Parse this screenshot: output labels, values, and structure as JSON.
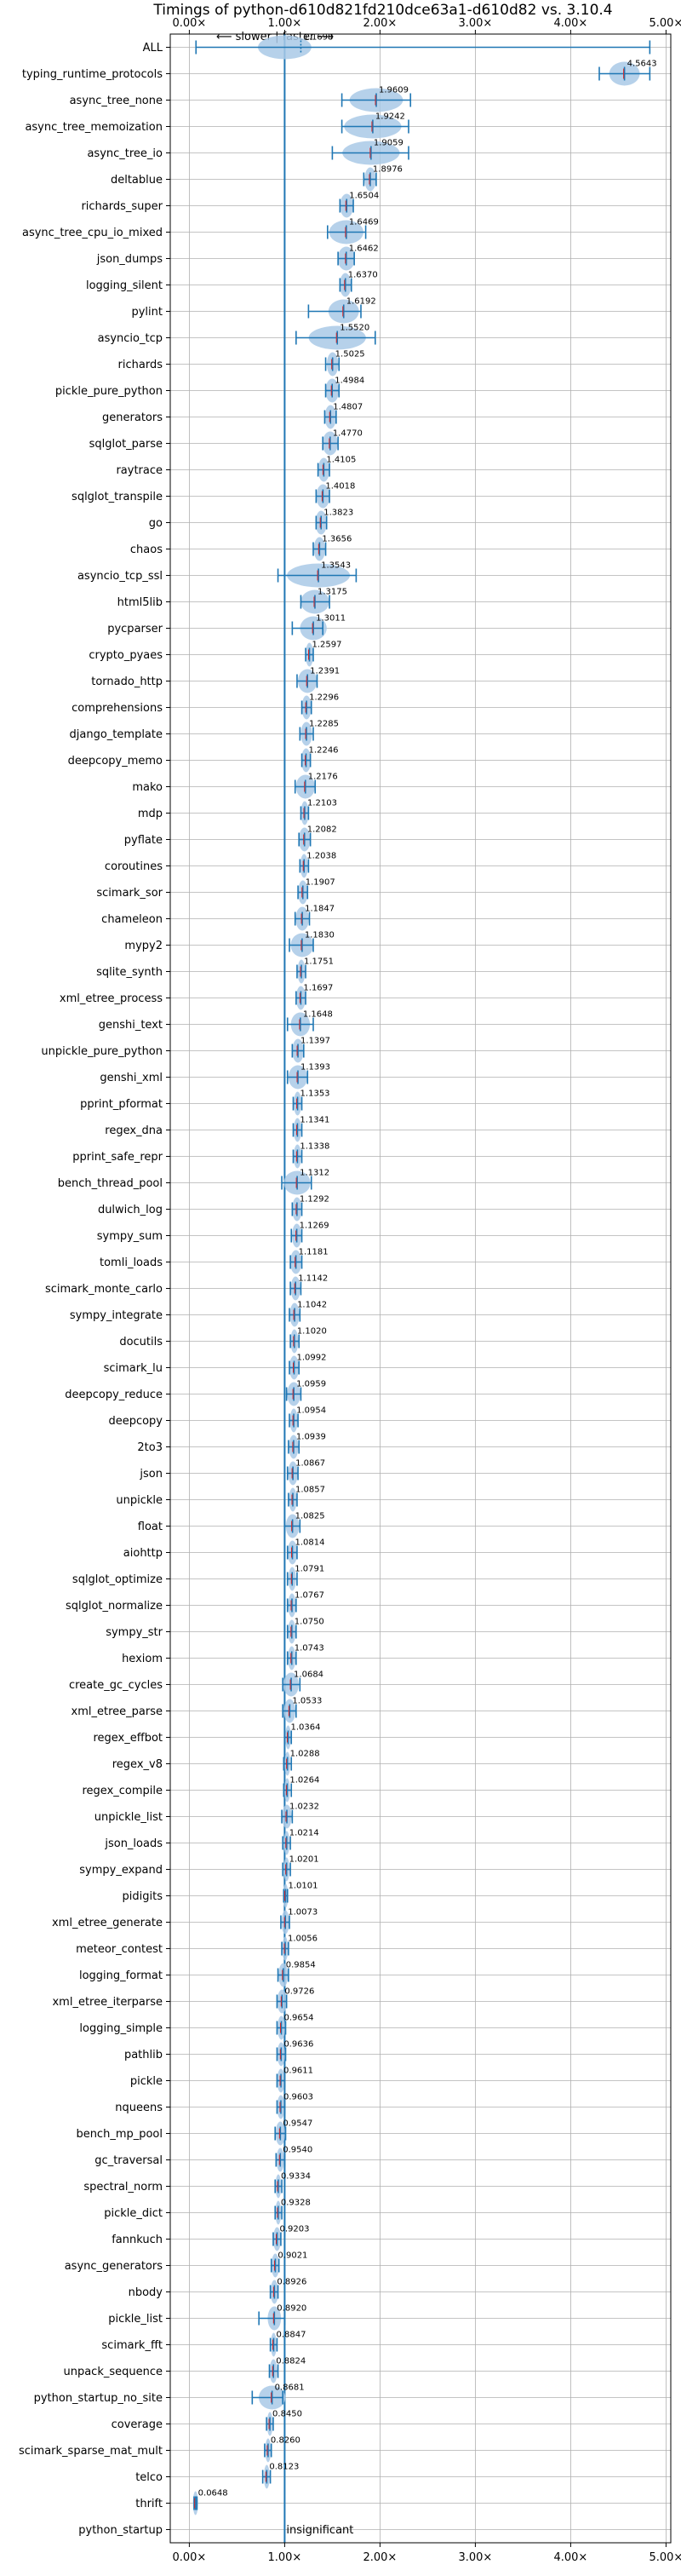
{
  "chart_data": {
    "type": "violin",
    "title": "Timings of python-d610d821fd210dce63a1-d610d82 vs. 3.10.4",
    "direction_label": "⟵ slower | faster ⟶",
    "x_axis": {
      "ticks": [
        0,
        1,
        2,
        3,
        4,
        5
      ],
      "tick_labels": [
        "0.00×",
        "1.00×",
        "2.00×",
        "3.00×",
        "4.00×",
        "5.00×"
      ],
      "xlim": [
        -0.2,
        5.05
      ],
      "reference_line": 1.0,
      "grid": true
    },
    "colors": {
      "violin": "#a9c9e6",
      "marker": "#1f77b4",
      "median": "#d62728",
      "grid": "#b0b0b0"
    },
    "rows": [
      {
        "name": "ALL",
        "value": 1.1698,
        "label": "1.1698",
        "low": 0.07,
        "high": 4.83,
        "spread": 0.28,
        "mid": 1.0
      },
      {
        "name": "typing_runtime_protocols",
        "value": 4.5643,
        "label": "4.5643",
        "low": 4.3,
        "high": 4.83,
        "spread": 0.16
      },
      {
        "name": "async_tree_none",
        "value": 1.9609,
        "label": "1.9609",
        "low": 1.6,
        "high": 2.32,
        "spread": 0.28
      },
      {
        "name": "async_tree_memoization",
        "value": 1.9242,
        "label": "1.9242",
        "low": 1.6,
        "high": 2.3,
        "spread": 0.3
      },
      {
        "name": "async_tree_io",
        "value": 1.9059,
        "label": "1.9059",
        "low": 1.5,
        "high": 2.3,
        "spread": 0.3
      },
      {
        "name": "deltablue",
        "value": 1.8976,
        "label": "1.8976",
        "low": 1.83,
        "high": 1.96,
        "spread": 0.06
      },
      {
        "name": "richards_super",
        "value": 1.6504,
        "label": "1.6504",
        "low": 1.58,
        "high": 1.72,
        "spread": 0.07
      },
      {
        "name": "async_tree_cpu_io_mixed",
        "value": 1.6469,
        "label": "1.6469",
        "low": 1.45,
        "high": 1.85,
        "spread": 0.18
      },
      {
        "name": "json_dumps",
        "value": 1.6462,
        "label": "1.6462",
        "low": 1.56,
        "high": 1.73,
        "spread": 0.09
      },
      {
        "name": "logging_silent",
        "value": 1.637,
        "label": "1.6370",
        "low": 1.58,
        "high": 1.7,
        "spread": 0.06
      },
      {
        "name": "pylint",
        "value": 1.6192,
        "label": "1.6192",
        "low": 1.25,
        "high": 1.8,
        "spread": 0.16
      },
      {
        "name": "asyncio_tcp",
        "value": 1.552,
        "label": "1.5520",
        "low": 1.12,
        "high": 1.95,
        "spread": 0.3
      },
      {
        "name": "richards",
        "value": 1.5025,
        "label": "1.5025",
        "low": 1.43,
        "high": 1.57,
        "spread": 0.06
      },
      {
        "name": "pickle_pure_python",
        "value": 1.4984,
        "label": "1.4984",
        "low": 1.43,
        "high": 1.57,
        "spread": 0.07
      },
      {
        "name": "generators",
        "value": 1.4807,
        "label": "1.4807",
        "low": 1.42,
        "high": 1.54,
        "spread": 0.06
      },
      {
        "name": "sqlglot_parse",
        "value": 1.477,
        "label": "1.4770",
        "low": 1.4,
        "high": 1.56,
        "spread": 0.08
      },
      {
        "name": "raytrace",
        "value": 1.4105,
        "label": "1.4105",
        "low": 1.35,
        "high": 1.47,
        "spread": 0.06
      },
      {
        "name": "sqlglot_transpile",
        "value": 1.4018,
        "label": "1.4018",
        "low": 1.33,
        "high": 1.47,
        "spread": 0.07
      },
      {
        "name": "go",
        "value": 1.3823,
        "label": "1.3823",
        "low": 1.33,
        "high": 1.44,
        "spread": 0.06
      },
      {
        "name": "chaos",
        "value": 1.3656,
        "label": "1.3656",
        "low": 1.3,
        "high": 1.43,
        "spread": 0.06
      },
      {
        "name": "asyncio_tcp_ssl",
        "value": 1.3543,
        "label": "1.3543",
        "low": 0.93,
        "high": 1.75,
        "spread": 0.33
      },
      {
        "name": "html5lib",
        "value": 1.3175,
        "label": "1.3175",
        "low": 1.17,
        "high": 1.47,
        "spread": 0.15
      },
      {
        "name": "pycparser",
        "value": 1.3011,
        "label": "1.3011",
        "low": 1.08,
        "high": 1.4,
        "spread": 0.14
      },
      {
        "name": "crypto_pyaes",
        "value": 1.2597,
        "label": "1.2597",
        "low": 1.22,
        "high": 1.3,
        "spread": 0.04
      },
      {
        "name": "tornado_http",
        "value": 1.2391,
        "label": "1.2391",
        "low": 1.13,
        "high": 1.34,
        "spread": 0.1
      },
      {
        "name": "comprehensions",
        "value": 1.2296,
        "label": "1.2296",
        "low": 1.18,
        "high": 1.28,
        "spread": 0.05
      },
      {
        "name": "django_template",
        "value": 1.2285,
        "label": "1.2285",
        "low": 1.16,
        "high": 1.3,
        "spread": 0.06
      },
      {
        "name": "deepcopy_memo",
        "value": 1.2246,
        "label": "1.2246",
        "low": 1.18,
        "high": 1.27,
        "spread": 0.05
      },
      {
        "name": "mako",
        "value": 1.2176,
        "label": "1.2176",
        "low": 1.11,
        "high": 1.32,
        "spread": 0.1
      },
      {
        "name": "mdp",
        "value": 1.2103,
        "label": "1.2103",
        "low": 1.17,
        "high": 1.25,
        "spread": 0.04
      },
      {
        "name": "pyflate",
        "value": 1.2082,
        "label": "1.2082",
        "low": 1.15,
        "high": 1.27,
        "spread": 0.06
      },
      {
        "name": "coroutines",
        "value": 1.2038,
        "label": "1.2038",
        "low": 1.16,
        "high": 1.25,
        "spread": 0.04
      },
      {
        "name": "scimark_sor",
        "value": 1.1907,
        "label": "1.1907",
        "low": 1.14,
        "high": 1.24,
        "spread": 0.05
      },
      {
        "name": "chameleon",
        "value": 1.1847,
        "label": "1.1847",
        "low": 1.11,
        "high": 1.26,
        "spread": 0.07
      },
      {
        "name": "mypy2",
        "value": 1.183,
        "label": "1.1830",
        "low": 1.05,
        "high": 1.3,
        "spread": 0.12
      },
      {
        "name": "sqlite_synth",
        "value": 1.1751,
        "label": "1.1751",
        "low": 1.13,
        "high": 1.22,
        "spread": 0.04
      },
      {
        "name": "xml_etree_process",
        "value": 1.1697,
        "label": "1.1697",
        "low": 1.12,
        "high": 1.22,
        "spread": 0.05
      },
      {
        "name": "genshi_text",
        "value": 1.1648,
        "label": "1.1648",
        "low": 1.03,
        "high": 1.3,
        "spread": 0.1
      },
      {
        "name": "unpickle_pure_python",
        "value": 1.1397,
        "label": "1.1397",
        "low": 1.08,
        "high": 1.2,
        "spread": 0.06
      },
      {
        "name": "genshi_xml",
        "value": 1.1393,
        "label": "1.1393",
        "low": 1.03,
        "high": 1.24,
        "spread": 0.1
      },
      {
        "name": "pprint_pformat",
        "value": 1.1353,
        "label": "1.1353",
        "low": 1.09,
        "high": 1.18,
        "spread": 0.04
      },
      {
        "name": "regex_dna",
        "value": 1.1341,
        "label": "1.1341",
        "low": 1.09,
        "high": 1.18,
        "spread": 0.04
      },
      {
        "name": "pprint_safe_repr",
        "value": 1.1338,
        "label": "1.1338",
        "low": 1.09,
        "high": 1.18,
        "spread": 0.04
      },
      {
        "name": "bench_thread_pool",
        "value": 1.1312,
        "label": "1.1312",
        "low": 0.97,
        "high": 1.28,
        "spread": 0.14
      },
      {
        "name": "dulwich_log",
        "value": 1.1292,
        "label": "1.1292",
        "low": 1.08,
        "high": 1.18,
        "spread": 0.05
      },
      {
        "name": "sympy_sum",
        "value": 1.1269,
        "label": "1.1269",
        "low": 1.07,
        "high": 1.18,
        "spread": 0.05
      },
      {
        "name": "tomli_loads",
        "value": 1.1181,
        "label": "1.1181",
        "low": 1.06,
        "high": 1.18,
        "spread": 0.06
      },
      {
        "name": "scimark_monte_carlo",
        "value": 1.1142,
        "label": "1.1142",
        "low": 1.06,
        "high": 1.17,
        "spread": 0.05
      },
      {
        "name": "sympy_integrate",
        "value": 1.1042,
        "label": "1.1042",
        "low": 1.05,
        "high": 1.16,
        "spread": 0.05
      },
      {
        "name": "docutils",
        "value": 1.102,
        "label": "1.1020",
        "low": 1.06,
        "high": 1.15,
        "spread": 0.04
      },
      {
        "name": "scimark_lu",
        "value": 1.0992,
        "label": "1.0992",
        "low": 1.05,
        "high": 1.15,
        "spread": 0.05
      },
      {
        "name": "deepcopy_reduce",
        "value": 1.0959,
        "label": "1.0959",
        "low": 1.02,
        "high": 1.17,
        "spread": 0.07
      },
      {
        "name": "deepcopy",
        "value": 1.0954,
        "label": "1.0954",
        "low": 1.05,
        "high": 1.14,
        "spread": 0.04
      },
      {
        "name": "2to3",
        "value": 1.0939,
        "label": "1.0939",
        "low": 1.04,
        "high": 1.15,
        "spread": 0.05
      },
      {
        "name": "json",
        "value": 1.0867,
        "label": "1.0867",
        "low": 1.03,
        "high": 1.14,
        "spread": 0.05
      },
      {
        "name": "unpickle",
        "value": 1.0857,
        "label": "1.0857",
        "low": 1.04,
        "high": 1.13,
        "spread": 0.04
      },
      {
        "name": "float",
        "value": 1.0825,
        "label": "1.0825",
        "low": 1.0,
        "high": 1.16,
        "spread": 0.07
      },
      {
        "name": "aiohttp",
        "value": 1.0814,
        "label": "1.0814",
        "low": 1.03,
        "high": 1.13,
        "spread": 0.05
      },
      {
        "name": "sqlglot_optimize",
        "value": 1.0791,
        "label": "1.0791",
        "low": 1.03,
        "high": 1.13,
        "spread": 0.04
      },
      {
        "name": "sqlglot_normalize",
        "value": 1.0767,
        "label": "1.0767",
        "low": 1.03,
        "high": 1.12,
        "spread": 0.04
      },
      {
        "name": "sympy_str",
        "value": 1.075,
        "label": "1.0750",
        "low": 1.03,
        "high": 1.12,
        "spread": 0.04
      },
      {
        "name": "hexiom",
        "value": 1.0743,
        "label": "1.0743",
        "low": 1.03,
        "high": 1.12,
        "spread": 0.04
      },
      {
        "name": "create_gc_cycles",
        "value": 1.0684,
        "label": "1.0684",
        "low": 0.98,
        "high": 1.16,
        "spread": 0.08
      },
      {
        "name": "xml_etree_parse",
        "value": 1.0533,
        "label": "1.0533",
        "low": 0.98,
        "high": 1.12,
        "spread": 0.06
      },
      {
        "name": "regex_effbot",
        "value": 1.0364,
        "label": "1.0364",
        "low": 1.0,
        "high": 1.07,
        "spread": 0.03
      },
      {
        "name": "regex_v8",
        "value": 1.0288,
        "label": "1.0288",
        "low": 0.99,
        "high": 1.07,
        "spread": 0.03
      },
      {
        "name": "regex_compile",
        "value": 1.0264,
        "label": "1.0264",
        "low": 0.99,
        "high": 1.07,
        "spread": 0.03
      },
      {
        "name": "unpickle_list",
        "value": 1.0232,
        "label": "1.0232",
        "low": 0.97,
        "high": 1.08,
        "spread": 0.05
      },
      {
        "name": "json_loads",
        "value": 1.0214,
        "label": "1.0214",
        "low": 0.98,
        "high": 1.06,
        "spread": 0.03
      },
      {
        "name": "sympy_expand",
        "value": 1.0201,
        "label": "1.0201",
        "low": 0.98,
        "high": 1.06,
        "spread": 0.03
      },
      {
        "name": "pidigits",
        "value": 1.0101,
        "label": "1.0101",
        "low": 0.99,
        "high": 1.03,
        "spread": 0.02
      },
      {
        "name": "xml_etree_generate",
        "value": 1.0073,
        "label": "1.0073",
        "low": 0.96,
        "high": 1.05,
        "spread": 0.04
      },
      {
        "name": "meteor_contest",
        "value": 1.0056,
        "label": "1.0056",
        "low": 0.97,
        "high": 1.04,
        "spread": 0.03
      },
      {
        "name": "logging_format",
        "value": 0.9854,
        "label": "0.9854",
        "low": 0.93,
        "high": 1.04,
        "spread": 0.05
      },
      {
        "name": "xml_etree_iterparse",
        "value": 0.9726,
        "label": "0.9726",
        "low": 0.92,
        "high": 1.02,
        "spread": 0.05
      },
      {
        "name": "logging_simple",
        "value": 0.9654,
        "label": "0.9654",
        "low": 0.92,
        "high": 1.01,
        "spread": 0.04
      },
      {
        "name": "pathlib",
        "value": 0.9636,
        "label": "0.9636",
        "low": 0.92,
        "high": 1.01,
        "spread": 0.04
      },
      {
        "name": "pickle",
        "value": 0.9611,
        "label": "0.9611",
        "low": 0.92,
        "high": 1.0,
        "spread": 0.04
      },
      {
        "name": "nqueens",
        "value": 0.9603,
        "label": "0.9603",
        "low": 0.92,
        "high": 1.0,
        "spread": 0.04
      },
      {
        "name": "bench_mp_pool",
        "value": 0.9547,
        "label": "0.9547",
        "low": 0.9,
        "high": 1.01,
        "spread": 0.05
      },
      {
        "name": "gc_traversal",
        "value": 0.954,
        "label": "0.9540",
        "low": 0.91,
        "high": 1.0,
        "spread": 0.04
      },
      {
        "name": "spectral_norm",
        "value": 0.9334,
        "label": "0.9334",
        "low": 0.9,
        "high": 0.97,
        "spread": 0.03
      },
      {
        "name": "pickle_dict",
        "value": 0.9328,
        "label": "0.9328",
        "low": 0.9,
        "high": 0.97,
        "spread": 0.03
      },
      {
        "name": "fannkuch",
        "value": 0.9203,
        "label": "0.9203",
        "low": 0.88,
        "high": 0.96,
        "spread": 0.04
      },
      {
        "name": "async_generators",
        "value": 0.9021,
        "label": "0.9021",
        "low": 0.86,
        "high": 0.94,
        "spread": 0.04
      },
      {
        "name": "nbody",
        "value": 0.8926,
        "label": "0.8926",
        "low": 0.85,
        "high": 0.93,
        "spread": 0.04
      },
      {
        "name": "pickle_list",
        "value": 0.892,
        "label": "0.8920",
        "low": 0.73,
        "high": 1.0,
        "spread": 0.07
      },
      {
        "name": "scimark_fft",
        "value": 0.8847,
        "label": "0.8847",
        "low": 0.85,
        "high": 0.92,
        "spread": 0.03
      },
      {
        "name": "unpack_sequence",
        "value": 0.8824,
        "label": "0.8824",
        "low": 0.84,
        "high": 0.93,
        "spread": 0.04
      },
      {
        "name": "python_startup_no_site",
        "value": 0.8681,
        "label": "0.8681",
        "low": 0.66,
        "high": 0.98,
        "spread": 0.14
      },
      {
        "name": "coverage",
        "value": 0.845,
        "label": "0.8450",
        "low": 0.81,
        "high": 0.88,
        "spread": 0.03
      },
      {
        "name": "scimark_sparse_mat_mult",
        "value": 0.826,
        "label": "0.8260",
        "low": 0.79,
        "high": 0.86,
        "spread": 0.03
      },
      {
        "name": "telco",
        "value": 0.8123,
        "label": "0.8123",
        "low": 0.77,
        "high": 0.85,
        "spread": 0.03
      },
      {
        "name": "thrift",
        "value": 0.0648,
        "label": "0.0648",
        "low": 0.05,
        "high": 0.08,
        "spread": 0.015
      },
      {
        "name": "python_startup",
        "value": null,
        "label": "insignificant"
      }
    ]
  }
}
